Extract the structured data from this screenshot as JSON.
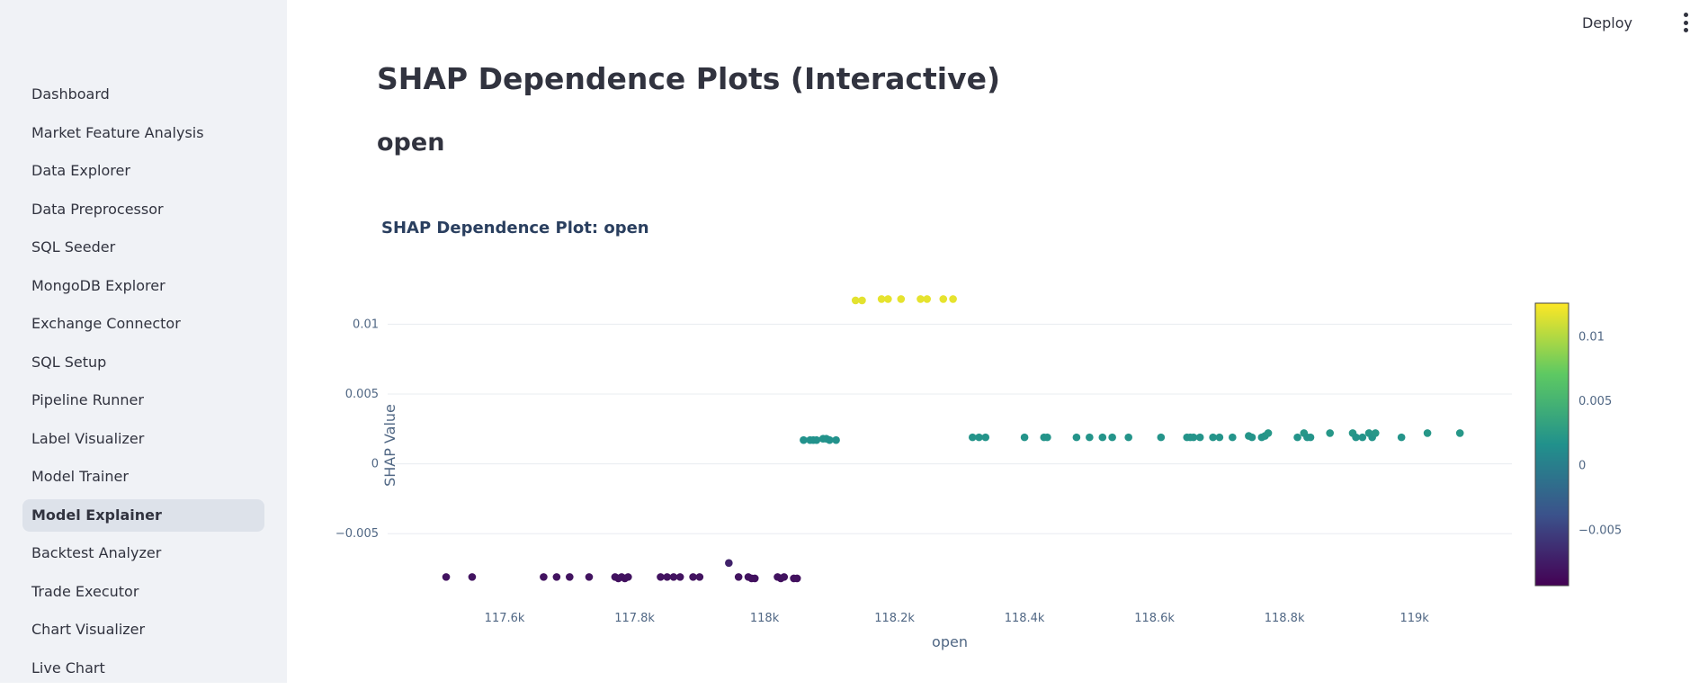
{
  "sidebar": {
    "items": [
      {
        "label": "Dashboard",
        "active": false
      },
      {
        "label": "Market Feature Analysis",
        "active": false
      },
      {
        "label": "Data Explorer",
        "active": false
      },
      {
        "label": "Data Preprocessor",
        "active": false
      },
      {
        "label": "SQL Seeder",
        "active": false
      },
      {
        "label": "MongoDB Explorer",
        "active": false
      },
      {
        "label": "Exchange Connector",
        "active": false
      },
      {
        "label": "SQL Setup",
        "active": false
      },
      {
        "label": "Pipeline Runner",
        "active": false
      },
      {
        "label": "Label Visualizer",
        "active": false
      },
      {
        "label": "Model Trainer",
        "active": false
      },
      {
        "label": "Model Explainer",
        "active": true
      },
      {
        "label": "Backtest Analyzer",
        "active": false
      },
      {
        "label": "Trade Executor",
        "active": false
      },
      {
        "label": "Chart Visualizer",
        "active": false
      },
      {
        "label": "Live Chart",
        "active": false
      }
    ]
  },
  "header": {
    "deploy_label": "Deploy",
    "menu_icon": "kebab-menu-icon"
  },
  "main": {
    "title": "SHAP Dependence Plots (Interactive)",
    "subtitle": "open"
  },
  "chart_data": {
    "type": "scatter",
    "title": "SHAP Dependence Plot: open",
    "xlabel": "open",
    "ylabel": "SHAP Value",
    "xlim": [
      117.42,
      119.15
    ],
    "ylim": [
      -0.0093,
      0.0126
    ],
    "x_ticks": [
      117.6,
      117.8,
      118.0,
      118.2,
      118.4,
      118.6,
      118.8,
      119.0
    ],
    "x_tick_labels": [
      "117.6k",
      "117.8k",
      "118k",
      "118.2k",
      "118.4k",
      "118.6k",
      "118.8k",
      "119k"
    ],
    "y_ticks": [
      -0.005,
      0,
      0.005,
      0.01
    ],
    "y_tick_labels": [
      "−0.005",
      "0",
      "0.005",
      "0.01"
    ],
    "grid": true,
    "colorscale": "viridis",
    "colorbar": {
      "range": [
        -0.0093,
        0.0126
      ],
      "ticks": [
        -0.005,
        0,
        0.005,
        0.01
      ],
      "tick_labels": [
        "−0.005",
        "0",
        "0.005",
        "0.01"
      ]
    },
    "colors": {
      "low": "#440154",
      "mid": "#21918c",
      "high": "#fde725",
      "grid": "#e8ecf1"
    },
    "points": [
      [
        117.51,
        -0.0081
      ],
      [
        117.55,
        -0.0081
      ],
      [
        117.66,
        -0.0081
      ],
      [
        117.68,
        -0.0081
      ],
      [
        117.7,
        -0.0081
      ],
      [
        117.73,
        -0.0081
      ],
      [
        117.77,
        -0.0081
      ],
      [
        117.775,
        -0.0082
      ],
      [
        117.78,
        -0.0081
      ],
      [
        117.785,
        -0.0082
      ],
      [
        117.79,
        -0.0081
      ],
      [
        117.84,
        -0.0081
      ],
      [
        117.85,
        -0.0081
      ],
      [
        117.86,
        -0.0081
      ],
      [
        117.87,
        -0.0081
      ],
      [
        117.89,
        -0.0081
      ],
      [
        117.9,
        -0.0081
      ],
      [
        117.945,
        -0.0071
      ],
      [
        117.96,
        -0.0081
      ],
      [
        117.975,
        -0.0081
      ],
      [
        117.98,
        -0.0082
      ],
      [
        117.985,
        -0.0082
      ],
      [
        118.02,
        -0.0081
      ],
      [
        118.025,
        -0.0082
      ],
      [
        118.03,
        -0.0081
      ],
      [
        118.045,
        -0.0082
      ],
      [
        118.05,
        -0.0082
      ],
      [
        118.06,
        0.0017
      ],
      [
        118.07,
        0.0017
      ],
      [
        118.075,
        0.0017
      ],
      [
        118.08,
        0.0017
      ],
      [
        118.09,
        0.0018
      ],
      [
        118.095,
        0.0018
      ],
      [
        118.1,
        0.0017
      ],
      [
        118.11,
        0.0017
      ],
      [
        118.14,
        0.0117
      ],
      [
        118.15,
        0.0117
      ],
      [
        118.18,
        0.0118
      ],
      [
        118.19,
        0.0118
      ],
      [
        118.21,
        0.0118
      ],
      [
        118.24,
        0.0118
      ],
      [
        118.25,
        0.0118
      ],
      [
        118.275,
        0.0118
      ],
      [
        118.29,
        0.0118
      ],
      [
        118.32,
        0.0019
      ],
      [
        118.33,
        0.0019
      ],
      [
        118.34,
        0.0019
      ],
      [
        118.4,
        0.0019
      ],
      [
        118.43,
        0.0019
      ],
      [
        118.435,
        0.0019
      ],
      [
        118.48,
        0.0019
      ],
      [
        118.5,
        0.0019
      ],
      [
        118.52,
        0.0019
      ],
      [
        118.535,
        0.0019
      ],
      [
        118.56,
        0.0019
      ],
      [
        118.61,
        0.0019
      ],
      [
        118.65,
        0.0019
      ],
      [
        118.655,
        0.0019
      ],
      [
        118.66,
        0.0019
      ],
      [
        118.67,
        0.0019
      ],
      [
        118.69,
        0.0019
      ],
      [
        118.7,
        0.0019
      ],
      [
        118.72,
        0.0019
      ],
      [
        118.745,
        0.002
      ],
      [
        118.75,
        0.0019
      ],
      [
        118.765,
        0.0019
      ],
      [
        118.77,
        0.002
      ],
      [
        118.775,
        0.0022
      ],
      [
        118.82,
        0.0019
      ],
      [
        118.83,
        0.0022
      ],
      [
        118.835,
        0.0019
      ],
      [
        118.84,
        0.0019
      ],
      [
        118.87,
        0.0022
      ],
      [
        118.905,
        0.0022
      ],
      [
        118.91,
        0.0019
      ],
      [
        118.92,
        0.0019
      ],
      [
        118.93,
        0.0022
      ],
      [
        118.935,
        0.0019
      ],
      [
        118.94,
        0.0022
      ],
      [
        118.98,
        0.0019
      ],
      [
        119.02,
        0.0022
      ],
      [
        119.07,
        0.0022
      ]
    ]
  }
}
